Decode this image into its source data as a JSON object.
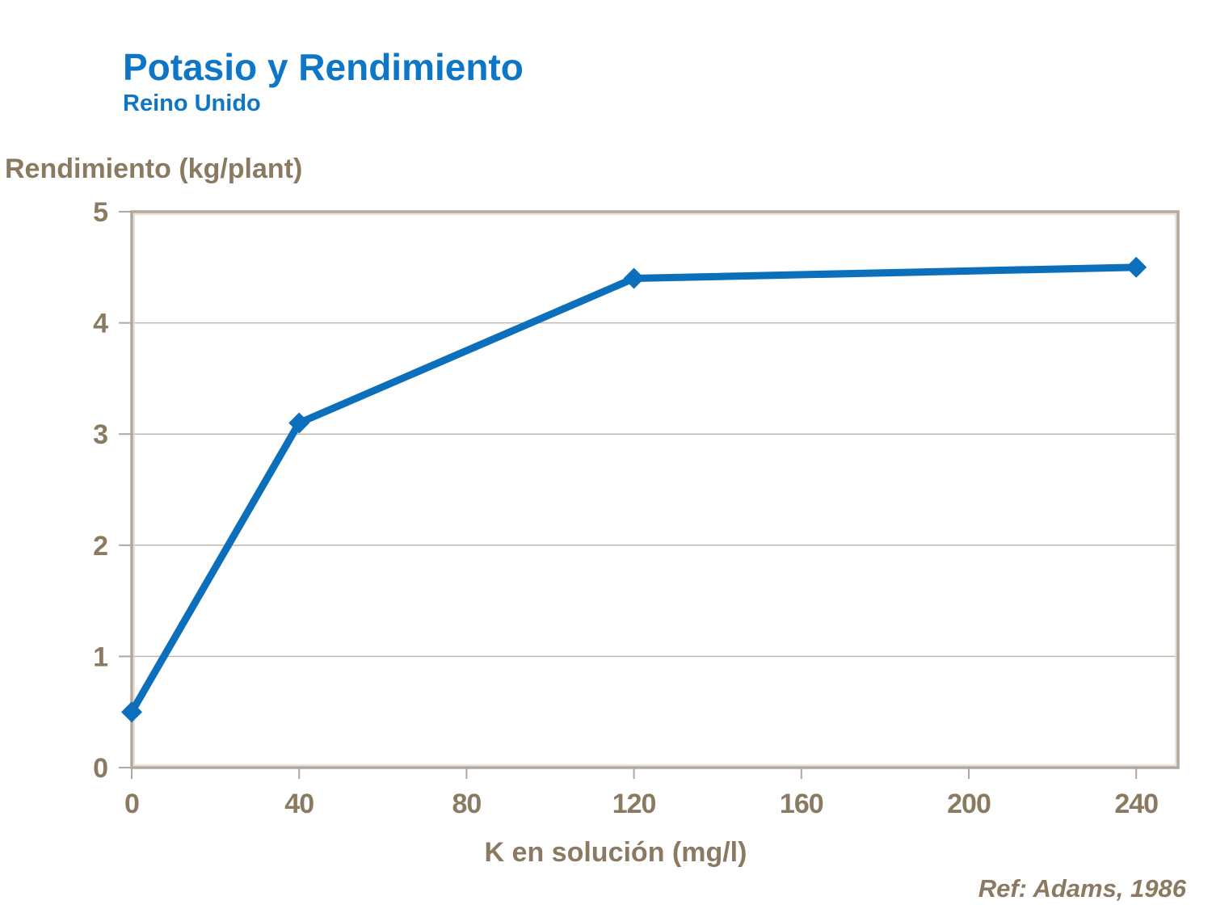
{
  "page": {
    "background": "#ffffff"
  },
  "chart_data": {
    "type": "line",
    "title": "Potasio y Rendimiento",
    "subtitle": "Reino Unido",
    "ylabel": "Rendimiento (kg/plant)",
    "xlabel": "K en solución (mg/l)",
    "ref_label": "Ref: Adams, 1986",
    "series": [
      {
        "name": "Rendimiento",
        "x": [
          0,
          40,
          120,
          240
        ],
        "y": [
          0.5,
          3.1,
          4.4,
          4.5
        ]
      }
    ],
    "xticks": [
      0,
      40,
      80,
      120,
      160,
      200,
      240
    ],
    "yticks": [
      0,
      1,
      2,
      3,
      4,
      5
    ],
    "xlim": [
      0,
      250
    ],
    "ylim": [
      0,
      5
    ],
    "grid": "horizontal-major",
    "legend": "none",
    "marker": "diamond",
    "colors": {
      "title_blue": "#0d76c6",
      "line_blue": "#0b6fbb",
      "text_brown": "#8a7a62",
      "axis": "#b2a79a",
      "grid": "#c0b8ac"
    }
  }
}
